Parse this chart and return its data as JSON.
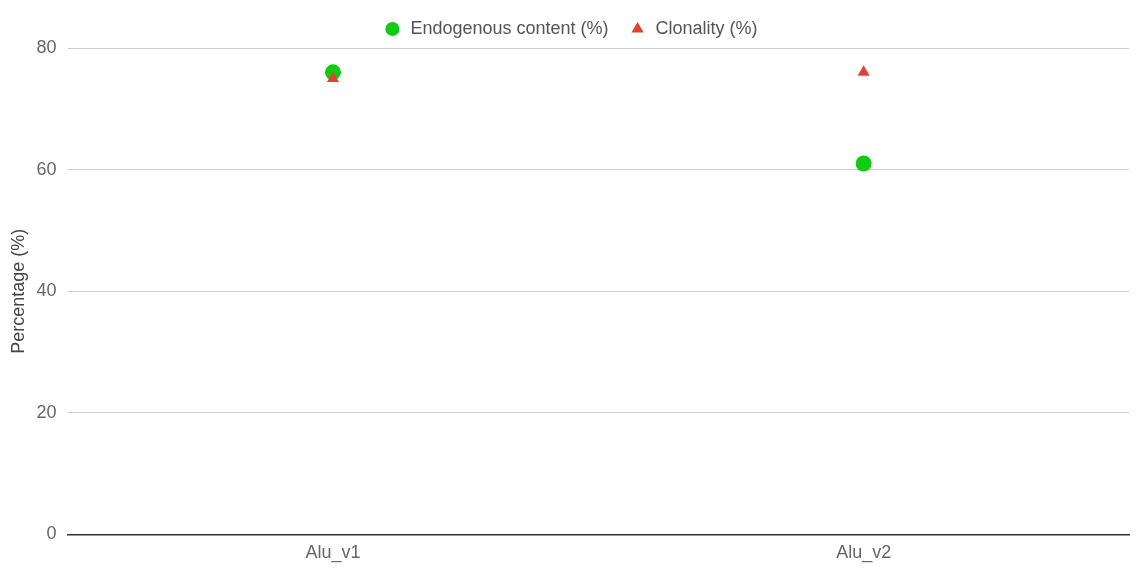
{
  "chart_data": {
    "type": "scatter",
    "categories": [
      "Alu_v1",
      "Alu_v2"
    ],
    "ylabel": "Percentage (%)",
    "ylim": [
      0,
      80
    ],
    "yticks": [
      0,
      20,
      40,
      60,
      80
    ],
    "grid": "y",
    "legend": "top",
    "series": [
      {
        "name": "Endogenous content (%)",
        "color": "#11cc11",
        "marker": "circle",
        "values": [
          76,
          61
        ]
      },
      {
        "name": "Clonality (%)",
        "color": "#dd4433",
        "marker": "triangle",
        "values": [
          75,
          76
        ]
      }
    ]
  }
}
